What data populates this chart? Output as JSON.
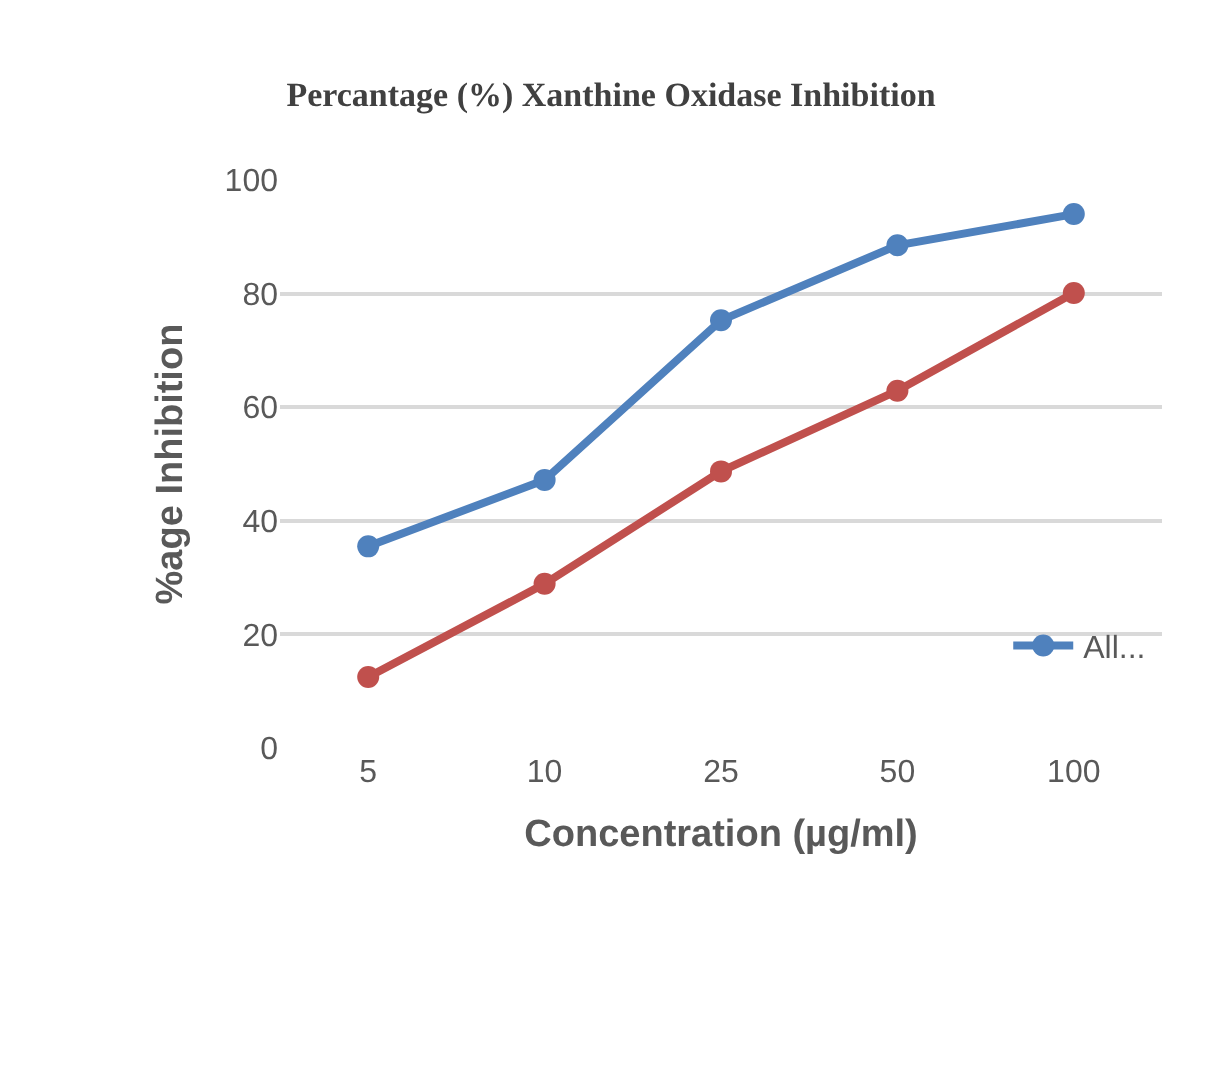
{
  "chart_data": {
    "type": "line",
    "title": "Percantage (%) Xanthine Oxidase Inhibition",
    "xlabel": "Concentration (µg/ml)",
    "ylabel": "%age Inhibition",
    "categories": [
      "5",
      "10",
      "25",
      "50",
      "100"
    ],
    "series": [
      {
        "name": "All...",
        "color": "#4f81bd",
        "values": [
          35.5,
          47.2,
          75.3,
          88.5,
          94
        ]
      },
      {
        "color": "#c0504d",
        "values": [
          12.5,
          28.9,
          48.7,
          62.9,
          80.1
        ]
      }
    ],
    "ylim": [
      0,
      100
    ],
    "yticks": [
      0,
      20,
      40,
      60,
      80,
      100
    ],
    "grid": "y",
    "legend": "right",
    "marker": "circle",
    "line_style": "solid"
  }
}
